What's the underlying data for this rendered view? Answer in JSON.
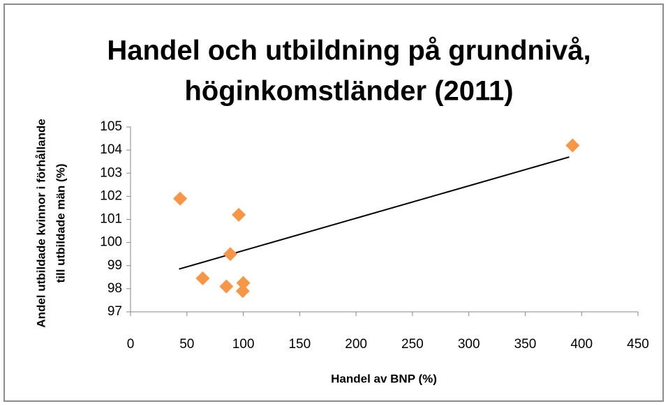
{
  "chart_data": {
    "type": "scatter",
    "title": [
      "Handel och utbildning på grundnivå,",
      "höginkomstländer (2011)"
    ],
    "xlabel": "Handel av BNP (%)",
    "ylabel": [
      "Andel utbildade kvinnor i förhållande",
      "till utbildade män (%)"
    ],
    "series": [
      {
        "color": "#f79646",
        "x": [
          44,
          64,
          85,
          88.5,
          96,
          100,
          99.5,
          392
        ],
        "values": [
          101.9,
          98.45,
          98.1,
          99.5,
          101.2,
          98.25,
          97.9,
          104.2
        ]
      }
    ],
    "trendline": {
      "color": "#000000",
      "x": [
        43,
        389
      ],
      "values": [
        98.85,
        103.7
      ]
    },
    "xlim": [
      0,
      450
    ],
    "xticks": [
      0,
      50,
      100,
      150,
      200,
      250,
      300,
      350,
      400,
      450
    ],
    "ylim": [
      97,
      105
    ],
    "yticks": [
      97,
      98,
      99,
      100,
      101,
      102,
      103,
      104,
      105
    ]
  }
}
